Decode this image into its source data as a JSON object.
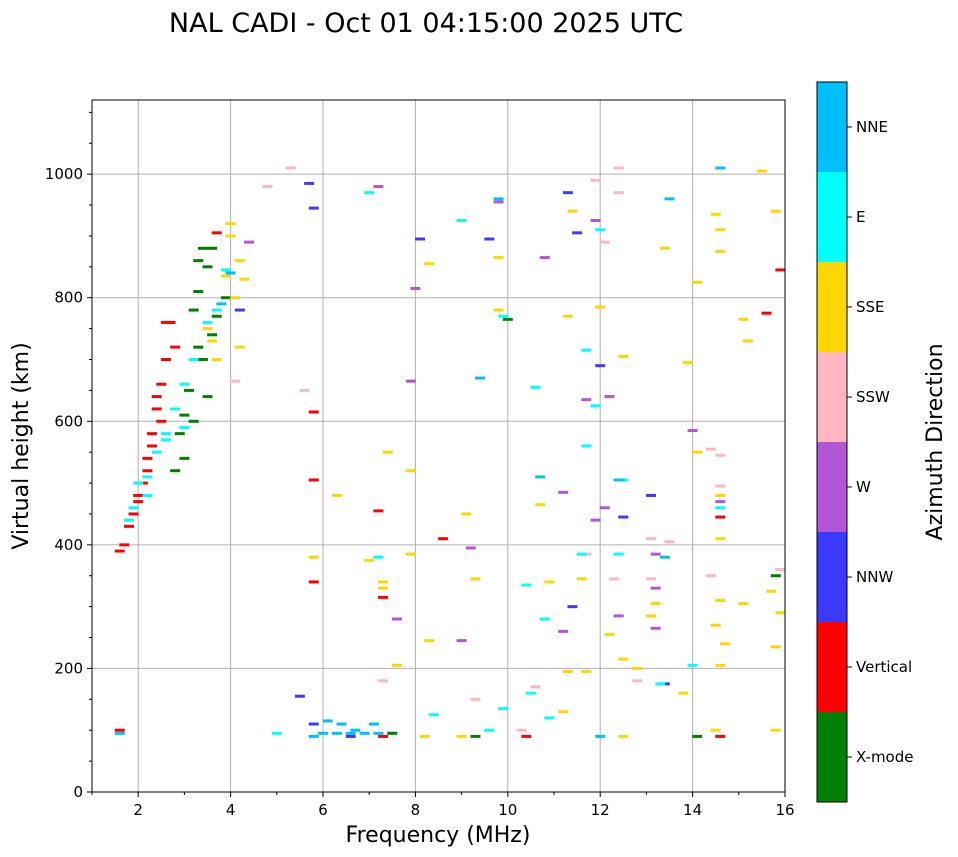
{
  "chart_data": {
    "type": "scatter",
    "title": "NAL CADI - Oct 01 04:15:00 2025 UTC",
    "xlabel": "Frequency (MHz)",
    "ylabel": "Virtual height (km)",
    "xlim": [
      1,
      16
    ],
    "ylim": [
      0,
      1120
    ],
    "x_ticks": [
      2,
      4,
      6,
      8,
      10,
      12,
      14,
      16
    ],
    "y_ticks": [
      0,
      200,
      400,
      600,
      800,
      1000
    ],
    "grid": true,
    "colorbar": {
      "label": "Azimuth Direction",
      "categories": [
        {
          "name": "X-mode",
          "color": "#008000"
        },
        {
          "name": "Vertical",
          "color": "#ff0000"
        },
        {
          "name": "NNW",
          "color": "#3a3aff"
        },
        {
          "name": "W",
          "color": "#b455d6"
        },
        {
          "name": "SSW",
          "color": "#ffb6c1"
        },
        {
          "name": "SSE",
          "color": "#ffd700"
        },
        {
          "name": "E",
          "color": "#00ffff"
        },
        {
          "name": "NNE",
          "color": "#00bfff"
        }
      ]
    },
    "series": [
      {
        "name": "X-mode",
        "points": [
          [
            3.4,
            880
          ],
          [
            3.3,
            860
          ],
          [
            3.6,
            880
          ],
          [
            3.2,
            780
          ],
          [
            3.3,
            720
          ],
          [
            3.4,
            700
          ],
          [
            3.1,
            650
          ],
          [
            3.0,
            610
          ],
          [
            2.9,
            580
          ],
          [
            2.8,
            520
          ],
          [
            3.5,
            640
          ],
          [
            3.2,
            600
          ],
          [
            3.6,
            740
          ],
          [
            3.3,
            810
          ],
          [
            3.7,
            770
          ],
          [
            9.3,
            90
          ],
          [
            7.5,
            95
          ],
          [
            14.1,
            90
          ],
          [
            15.8,
            350
          ],
          [
            10.0,
            765
          ],
          [
            3.9,
            800
          ],
          [
            3.0,
            540
          ],
          [
            3.5,
            850
          ]
        ]
      },
      {
        "name": "Vertical",
        "points": [
          [
            1.6,
            390
          ],
          [
            1.7,
            400
          ],
          [
            1.8,
            430
          ],
          [
            1.9,
            450
          ],
          [
            2.0,
            470
          ],
          [
            2.1,
            500
          ],
          [
            2.2,
            540
          ],
          [
            2.3,
            580
          ],
          [
            2.4,
            620
          ],
          [
            2.5,
            660
          ],
          [
            2.6,
            700
          ],
          [
            2.7,
            760
          ],
          [
            2.5,
            600
          ],
          [
            2.3,
            560
          ],
          [
            2.0,
            480
          ],
          [
            2.2,
            520
          ],
          [
            2.8,
            720
          ],
          [
            3.7,
            905
          ],
          [
            5.8,
            340
          ],
          [
            7.3,
            315
          ],
          [
            5.8,
            615
          ],
          [
            5.8,
            505
          ],
          [
            7.2,
            455
          ],
          [
            8.6,
            410
          ],
          [
            15.6,
            775
          ],
          [
            15.9,
            845
          ],
          [
            14.6,
            445
          ],
          [
            10.4,
            90
          ],
          [
            7.3,
            90
          ],
          [
            14.6,
            90
          ],
          [
            1.6,
            100
          ],
          [
            2.4,
            640
          ],
          [
            2.6,
            760
          ]
        ]
      },
      {
        "name": "NNW",
        "points": [
          [
            6.6,
            90
          ],
          [
            11.3,
            970
          ],
          [
            11.5,
            905
          ],
          [
            12.5,
            445
          ],
          [
            13.1,
            480
          ],
          [
            9.6,
            895
          ],
          [
            5.8,
            945
          ],
          [
            5.7,
            985
          ],
          [
            4.2,
            780
          ],
          [
            8.1,
            895
          ],
          [
            11.4,
            300
          ],
          [
            5.5,
            155
          ],
          [
            5.8,
            110
          ],
          [
            13.4,
            175
          ],
          [
            12.0,
            690
          ]
        ]
      },
      {
        "name": "W",
        "points": [
          [
            9.2,
            395
          ],
          [
            9.0,
            245
          ],
          [
            11.2,
            260
          ],
          [
            12.4,
            285
          ],
          [
            13.2,
            265
          ],
          [
            13.2,
            330
          ],
          [
            14.6,
            470
          ],
          [
            14.0,
            585
          ],
          [
            12.1,
            460
          ],
          [
            11.9,
            440
          ],
          [
            12.2,
            640
          ],
          [
            11.7,
            635
          ],
          [
            13.2,
            385
          ],
          [
            9.8,
            955
          ],
          [
            7.6,
            280
          ],
          [
            8.0,
            815
          ],
          [
            7.9,
            665
          ],
          [
            7.2,
            980
          ],
          [
            4.4,
            890
          ],
          [
            10.8,
            865
          ],
          [
            11.9,
            925
          ],
          [
            11.2,
            485
          ]
        ]
      },
      {
        "name": "SSW",
        "points": [
          [
            5.6,
            650
          ],
          [
            4.1,
            665
          ],
          [
            12.4,
            1010
          ],
          [
            11.9,
            990
          ],
          [
            12.1,
            890
          ],
          [
            12.4,
            970
          ],
          [
            13.1,
            410
          ],
          [
            13.5,
            405
          ],
          [
            14.4,
            555
          ],
          [
            14.6,
            545
          ],
          [
            14.6,
            495
          ],
          [
            13.1,
            345
          ],
          [
            12.3,
            345
          ],
          [
            14.4,
            350
          ],
          [
            10.6,
            170
          ],
          [
            12.8,
            180
          ],
          [
            7.3,
            180
          ],
          [
            9.3,
            150
          ],
          [
            10.3,
            100
          ],
          [
            11.7,
            385
          ],
          [
            4.8,
            980
          ],
          [
            5.3,
            1010
          ],
          [
            15.9,
            360
          ]
        ]
      },
      {
        "name": "SSE",
        "points": [
          [
            3.6,
            730
          ],
          [
            3.7,
            700
          ],
          [
            3.5,
            750
          ],
          [
            4.2,
            720
          ],
          [
            4.1,
            800
          ],
          [
            4.2,
            860
          ],
          [
            4.0,
            900
          ],
          [
            3.9,
            835
          ],
          [
            4.0,
            920
          ],
          [
            4.3,
            830
          ],
          [
            9.3,
            345
          ],
          [
            10.7,
            465
          ],
          [
            12.5,
            705
          ],
          [
            12.0,
            785
          ],
          [
            11.3,
            770
          ],
          [
            13.9,
            695
          ],
          [
            14.1,
            550
          ],
          [
            14.6,
            480
          ],
          [
            14.6,
            410
          ],
          [
            15.1,
            765
          ],
          [
            15.2,
            730
          ],
          [
            15.5,
            1005
          ],
          [
            15.8,
            940
          ],
          [
            14.5,
            935
          ],
          [
            14.6,
            910
          ],
          [
            14.6,
            875
          ],
          [
            14.1,
            825
          ],
          [
            13.4,
            880
          ],
          [
            15.7,
            325
          ],
          [
            15.9,
            290
          ],
          [
            15.8,
            235
          ],
          [
            14.6,
            205
          ],
          [
            14.6,
            310
          ],
          [
            15.1,
            305
          ],
          [
            14.5,
            270
          ],
          [
            14.7,
            240
          ],
          [
            12.2,
            255
          ],
          [
            12.5,
            215
          ],
          [
            12.8,
            200
          ],
          [
            13.1,
            285
          ],
          [
            13.2,
            305
          ],
          [
            10.9,
            340
          ],
          [
            11.6,
            345
          ],
          [
            11.3,
            195
          ],
          [
            11.7,
            195
          ],
          [
            11.2,
            130
          ],
          [
            8.3,
            245
          ],
          [
            7.3,
            340
          ],
          [
            7.3,
            330
          ],
          [
            7.6,
            205
          ],
          [
            8.2,
            90
          ],
          [
            9.0,
            90
          ],
          [
            9.1,
            450
          ],
          [
            6.3,
            480
          ],
          [
            5.8,
            380
          ],
          [
            7.0,
            375
          ],
          [
            7.9,
            385
          ],
          [
            7.9,
            520
          ],
          [
            7.4,
            550
          ],
          [
            8.3,
            855
          ],
          [
            9.8,
            865
          ],
          [
            9.8,
            780
          ],
          [
            11.4,
            940
          ],
          [
            13.8,
            160
          ],
          [
            14.5,
            100
          ],
          [
            15.8,
            100
          ],
          [
            12.5,
            90
          ]
        ]
      },
      {
        "name": "E",
        "points": [
          [
            1.9,
            460
          ],
          [
            2.0,
            500
          ],
          [
            2.2,
            510
          ],
          [
            2.4,
            550
          ],
          [
            2.6,
            580
          ],
          [
            2.8,
            620
          ],
          [
            3.0,
            660
          ],
          [
            3.2,
            700
          ],
          [
            3.5,
            760
          ],
          [
            3.9,
            845
          ],
          [
            3.7,
            780
          ],
          [
            3.0,
            590
          ],
          [
            2.6,
            570
          ],
          [
            2.2,
            480
          ],
          [
            1.8,
            440
          ],
          [
            7.0,
            970
          ],
          [
            12.0,
            910
          ],
          [
            9.0,
            925
          ],
          [
            10.6,
            655
          ],
          [
            11.7,
            715
          ],
          [
            11.7,
            560
          ],
          [
            11.6,
            385
          ],
          [
            12.4,
            385
          ],
          [
            12.5,
            505
          ],
          [
            11.9,
            625
          ],
          [
            14.6,
            460
          ],
          [
            14.0,
            205
          ],
          [
            13.3,
            175
          ],
          [
            10.4,
            335
          ],
          [
            10.8,
            280
          ],
          [
            10.5,
            160
          ],
          [
            9.9,
            135
          ],
          [
            10.9,
            120
          ],
          [
            8.4,
            125
          ],
          [
            9.6,
            100
          ],
          [
            5.0,
            95
          ],
          [
            7.2,
            380
          ],
          [
            9.9,
            770
          ]
        ]
      },
      {
        "name": "NNE",
        "points": [
          [
            6.0,
            95
          ],
          [
            6.3,
            95
          ],
          [
            6.6,
            95
          ],
          [
            6.9,
            95
          ],
          [
            7.2,
            95
          ],
          [
            6.4,
            110
          ],
          [
            6.7,
            100
          ],
          [
            5.8,
            90
          ],
          [
            7.1,
            110
          ],
          [
            10.7,
            510
          ],
          [
            12.4,
            505
          ],
          [
            14.6,
            1010
          ],
          [
            13.5,
            960
          ],
          [
            4.0,
            840
          ],
          [
            3.8,
            790
          ],
          [
            9.4,
            670
          ],
          [
            9.8,
            960
          ],
          [
            13.4,
            380
          ],
          [
            1.6,
            95
          ],
          [
            6.1,
            115
          ],
          [
            12.0,
            90
          ]
        ]
      }
    ]
  }
}
